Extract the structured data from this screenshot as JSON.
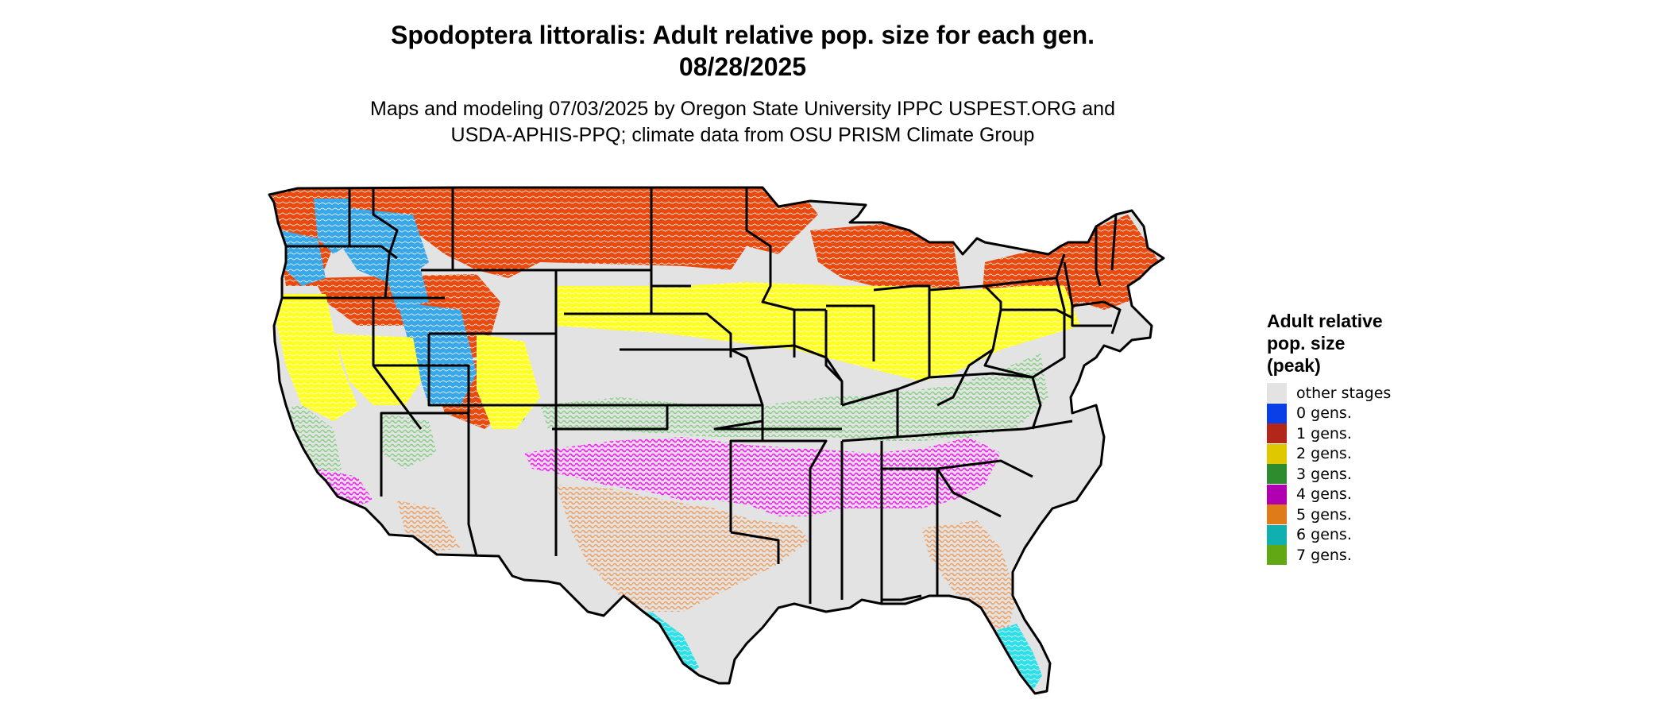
{
  "title": {
    "line1": "Spodoptera littoralis: Adult relative pop. size for each gen.",
    "line2": "08/28/2025"
  },
  "subtitle": {
    "line1": "Maps and modeling 07/03/2025 by Oregon State University IPPC USPEST.ORG and",
    "line2": "USDA-APHIS-PPQ; climate data from OSU PRISM Climate Group"
  },
  "legend": {
    "title_lines": [
      "Adult relative",
      "pop. size",
      "(peak)"
    ],
    "items": [
      {
        "label": "other stages",
        "color": "#e3e3e3"
      },
      {
        "label": "0 gens.",
        "color": "#0a3ee6"
      },
      {
        "label": "1 gens.",
        "color": "#b3261a"
      },
      {
        "label": "2 gens.",
        "color": "#e0c800"
      },
      {
        "label": "3 gens.",
        "color": "#2e8b2e"
      },
      {
        "label": "4 gens.",
        "color": "#b000b0"
      },
      {
        "label": "5 gens.",
        "color": "#e07b1a"
      },
      {
        "label": "6 gens.",
        "color": "#10b0b0"
      },
      {
        "label": "7 gens.",
        "color": "#62a814"
      }
    ]
  },
  "map": {
    "region": "contiguous-us",
    "base_color": "#e3e3e3",
    "zone_colors": {
      "1 gens.": "#e84a10",
      "0 gens.": "#3aa8e8",
      "2 gens.": "#ffff20",
      "3 gens.": "#7fd07f",
      "4 gens.": "#ff20ff",
      "5 gens.": "#f0a060",
      "6 gens.": "#30e0e8"
    }
  }
}
